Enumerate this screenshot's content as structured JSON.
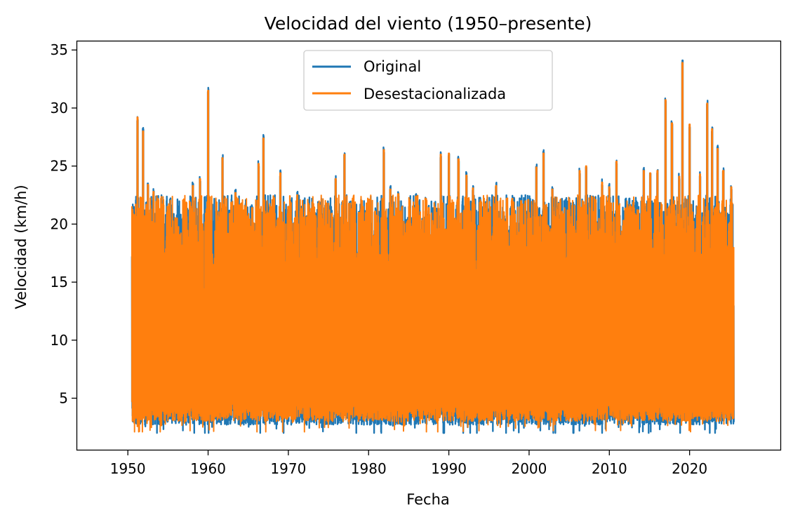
{
  "chart_data": {
    "type": "line",
    "title": "Velocidad del viento (1950–presente)",
    "xlabel": "Fecha",
    "ylabel": "Velocidad (km/h)",
    "xlim": [
      1943.6,
      2031.4
    ],
    "ylim": [
      0.5,
      35.8
    ],
    "xticks": [
      1950,
      1960,
      1970,
      1980,
      1990,
      2000,
      2010,
      2020
    ],
    "xtick_labels": [
      "1950",
      "1960",
      "1970",
      "1980",
      "1990",
      "2000",
      "2010",
      "2020"
    ],
    "yticks": [
      5,
      10,
      15,
      20,
      25,
      30,
      35
    ],
    "ytick_labels": [
      "5",
      "10",
      "15",
      "20",
      "25",
      "30",
      "35"
    ],
    "grid": false,
    "legend_placement": "upper center",
    "x_range": [
      1950.5,
      2025.5
    ],
    "series": [
      {
        "name": "Original",
        "color": "#1f77b4",
        "summary": {
          "typical_low": 3.5,
          "typical_high": 20.0,
          "min": 2.0,
          "max": 34.1
        }
      },
      {
        "name": "Desestacionalizada",
        "color": "#ff7f0e",
        "summary": {
          "typical_low": 3.8,
          "typical_high": 20.0,
          "min": 2.1,
          "max": 33.9
        }
      }
    ],
    "annual_peaks": [
      [
        1950.9,
        20.8
      ],
      [
        1951.2,
        29.2
      ],
      [
        1951.9,
        28.0
      ],
      [
        1952.5,
        23.4
      ],
      [
        1953.2,
        22.8
      ],
      [
        1954.3,
        21.7
      ],
      [
        1955.0,
        21.2
      ],
      [
        1956.1,
        20.5
      ],
      [
        1957.2,
        19.0
      ],
      [
        1958.1,
        23.3
      ],
      [
        1959.0,
        23.9
      ],
      [
        1960.0,
        31.5
      ],
      [
        1960.9,
        19.4
      ],
      [
        1961.8,
        25.7
      ],
      [
        1962.7,
        20.9
      ],
      [
        1963.4,
        22.7
      ],
      [
        1964.2,
        21.8
      ],
      [
        1965.5,
        21.4
      ],
      [
        1966.3,
        25.2
      ],
      [
        1966.9,
        27.4
      ],
      [
        1967.9,
        21.3
      ],
      [
        1969.0,
        24.4
      ],
      [
        1970.0,
        21.5
      ],
      [
        1971.1,
        22.5
      ],
      [
        1972.3,
        20.6
      ],
      [
        1973.4,
        20.7
      ],
      [
        1974.0,
        21.6
      ],
      [
        1975.1,
        21.2
      ],
      [
        1975.9,
        23.9
      ],
      [
        1977.0,
        26.0
      ],
      [
        1977.9,
        21.3
      ],
      [
        1978.8,
        21.0
      ],
      [
        1979.8,
        21.1
      ],
      [
        1980.8,
        21.1
      ],
      [
        1981.9,
        26.4
      ],
      [
        1982.7,
        23.0
      ],
      [
        1983.7,
        22.6
      ],
      [
        1984.9,
        20.3
      ],
      [
        1985.9,
        22.4
      ],
      [
        1986.7,
        20.3
      ],
      [
        1987.5,
        21.4
      ],
      [
        1988.4,
        21.0
      ],
      [
        1989.0,
        26.0
      ],
      [
        1990.0,
        26.1
      ],
      [
        1991.2,
        25.6
      ],
      [
        1992.2,
        24.2
      ],
      [
        1993.0,
        23.1
      ],
      [
        1994.0,
        21.9
      ],
      [
        1995.0,
        21.0
      ],
      [
        1995.9,
        23.3
      ],
      [
        1997.1,
        20.2
      ],
      [
        1997.9,
        22.2
      ],
      [
        1999.0,
        22.0
      ],
      [
        1999.9,
        22.1
      ],
      [
        2000.9,
        24.9
      ],
      [
        2001.8,
        26.1
      ],
      [
        2002.9,
        23.0
      ],
      [
        2004.0,
        21.0
      ],
      [
        2005.0,
        22.1
      ],
      [
        2006.3,
        24.6
      ],
      [
        2007.1,
        25.0
      ],
      [
        2008.3,
        22.1
      ],
      [
        2009.1,
        23.6
      ],
      [
        2010.0,
        23.2
      ],
      [
        2010.9,
        25.4
      ],
      [
        2011.8,
        20.3
      ],
      [
        2012.7,
        21.5
      ],
      [
        2013.6,
        21.2
      ],
      [
        2014.3,
        24.6
      ],
      [
        2015.1,
        24.4
      ],
      [
        2016.0,
        24.6
      ],
      [
        2017.0,
        30.7
      ],
      [
        2017.8,
        28.7
      ],
      [
        2018.7,
        24.1
      ],
      [
        2019.1,
        34.1
      ],
      [
        2020.0,
        28.6
      ],
      [
        2021.3,
        24.3
      ],
      [
        2022.2,
        30.4
      ],
      [
        2022.8,
        28.2
      ],
      [
        2023.5,
        26.5
      ],
      [
        2024.2,
        24.6
      ],
      [
        2025.2,
        23.2
      ]
    ]
  }
}
